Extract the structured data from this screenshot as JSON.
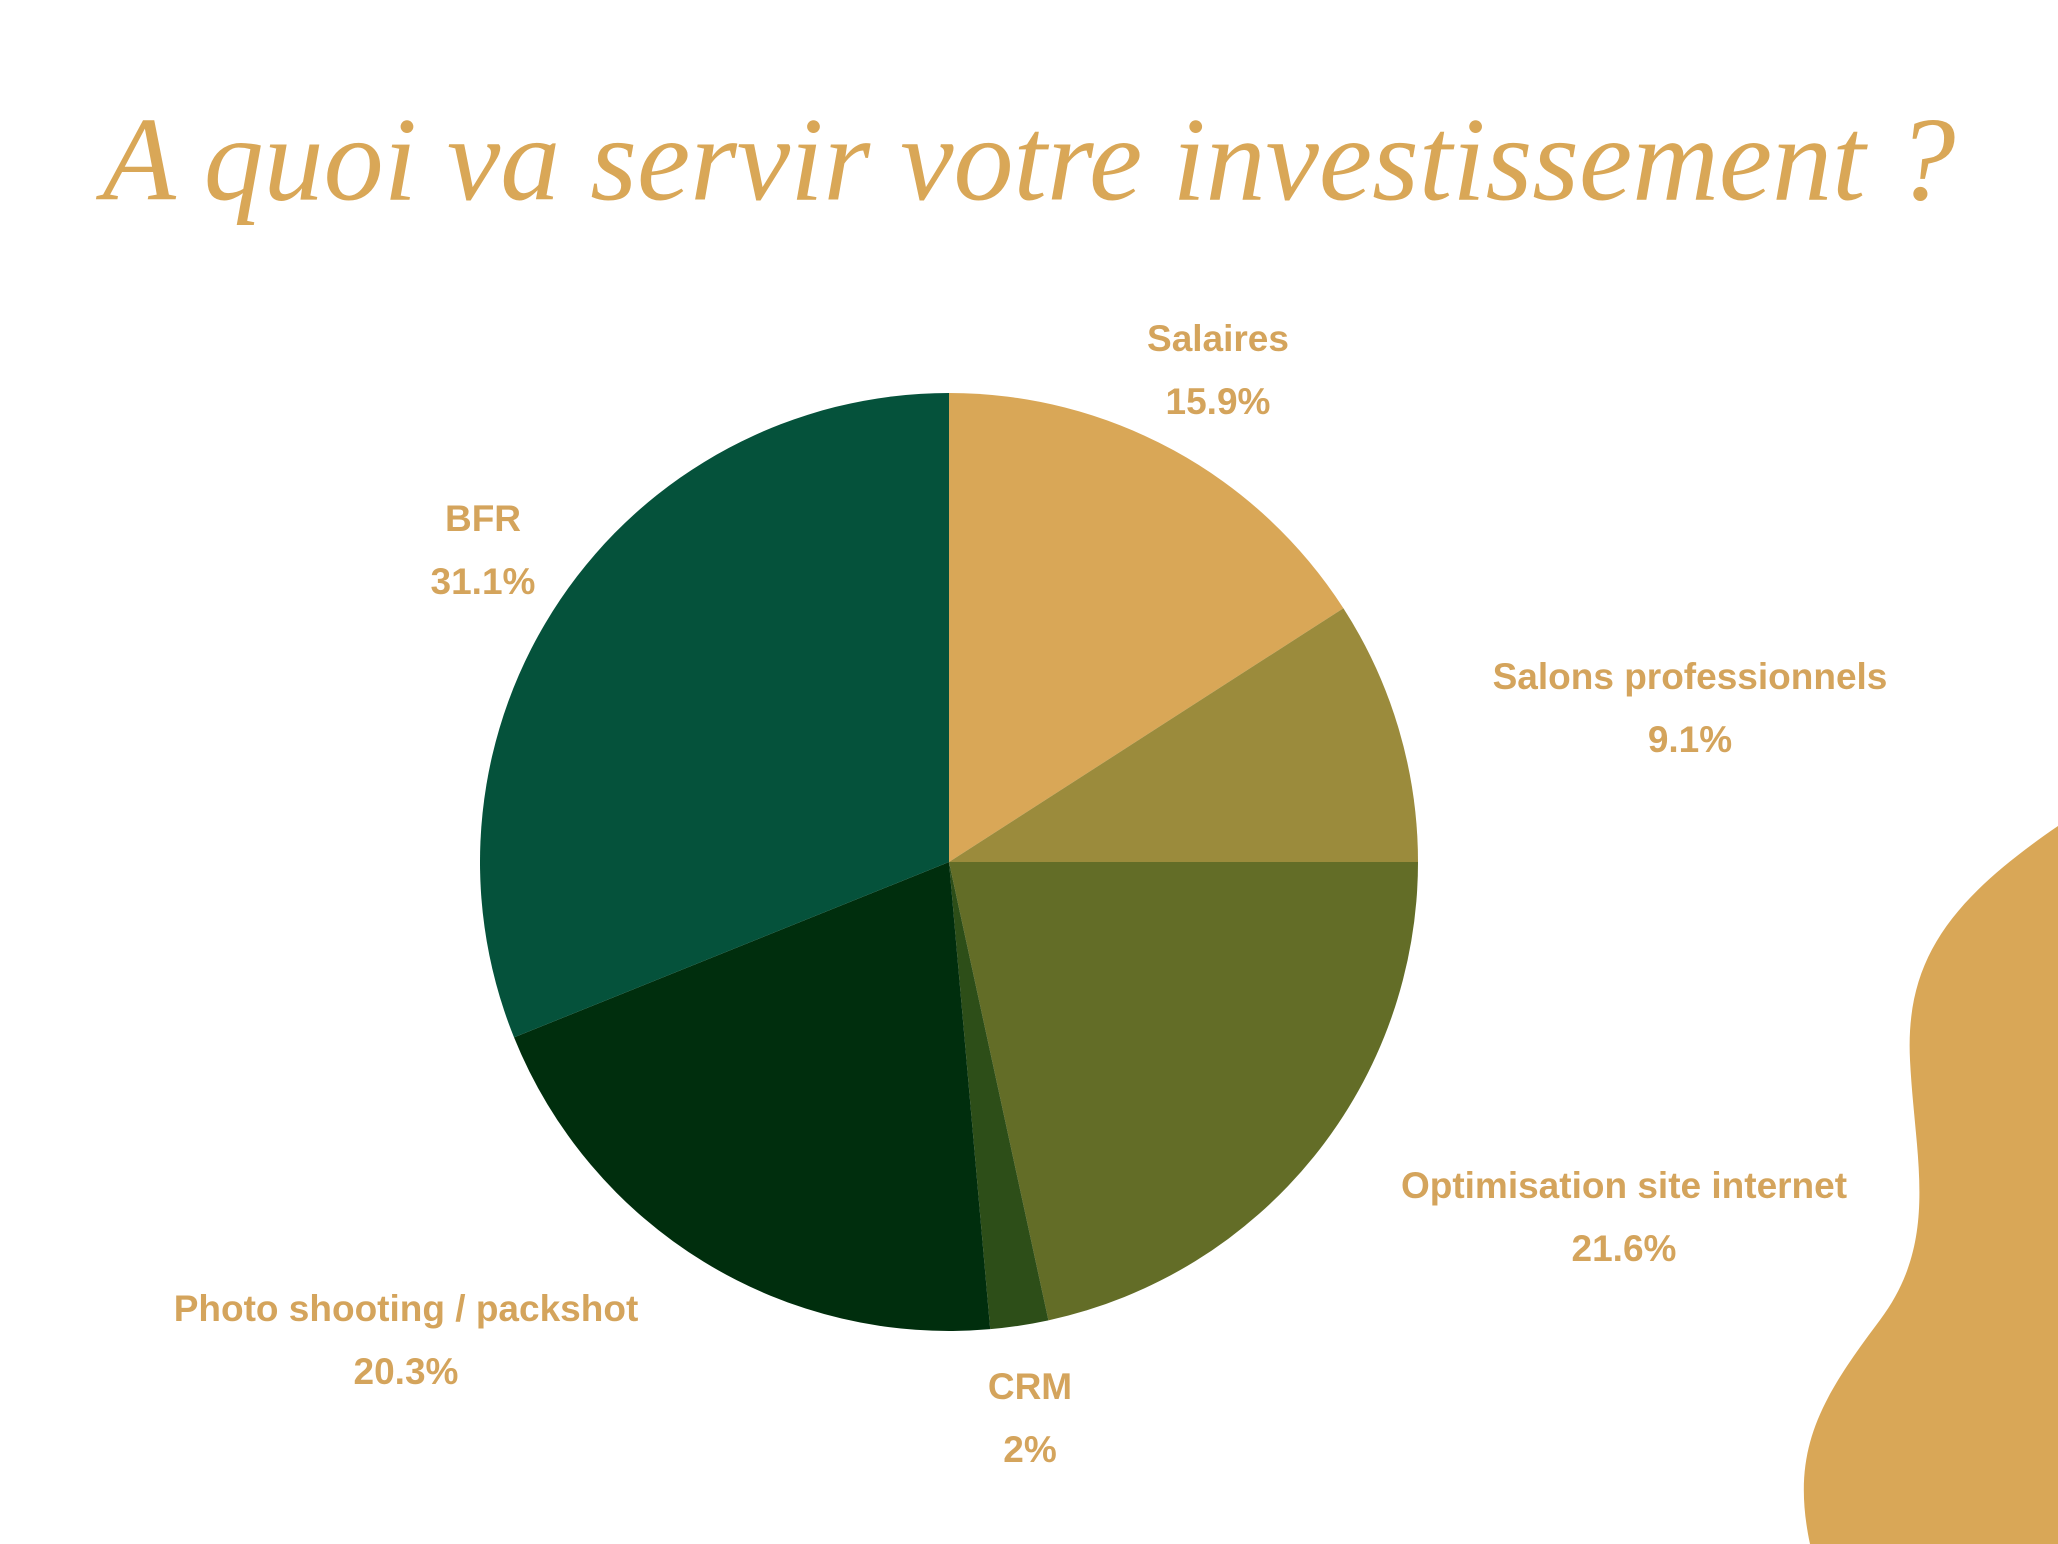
{
  "chart_data": {
    "type": "pie",
    "title": "A quoi va servir votre investissement ?",
    "categories": [
      "Salaires",
      "Salons professionnels",
      "Optimisation site internet",
      "CRM",
      "Photo shooting / packshot",
      "BFR"
    ],
    "values": [
      15.9,
      9.1,
      21.6,
      2,
      20.3,
      31.1
    ],
    "value_labels": [
      "15.9%",
      "9.1%",
      "21.6%",
      "2%",
      "20.3%",
      "31.1%"
    ],
    "colors": [
      "#d9a757",
      "#9b8b3c",
      "#636d27",
      "#2d4e18",
      "#002e0d",
      "#05523b"
    ]
  }
}
